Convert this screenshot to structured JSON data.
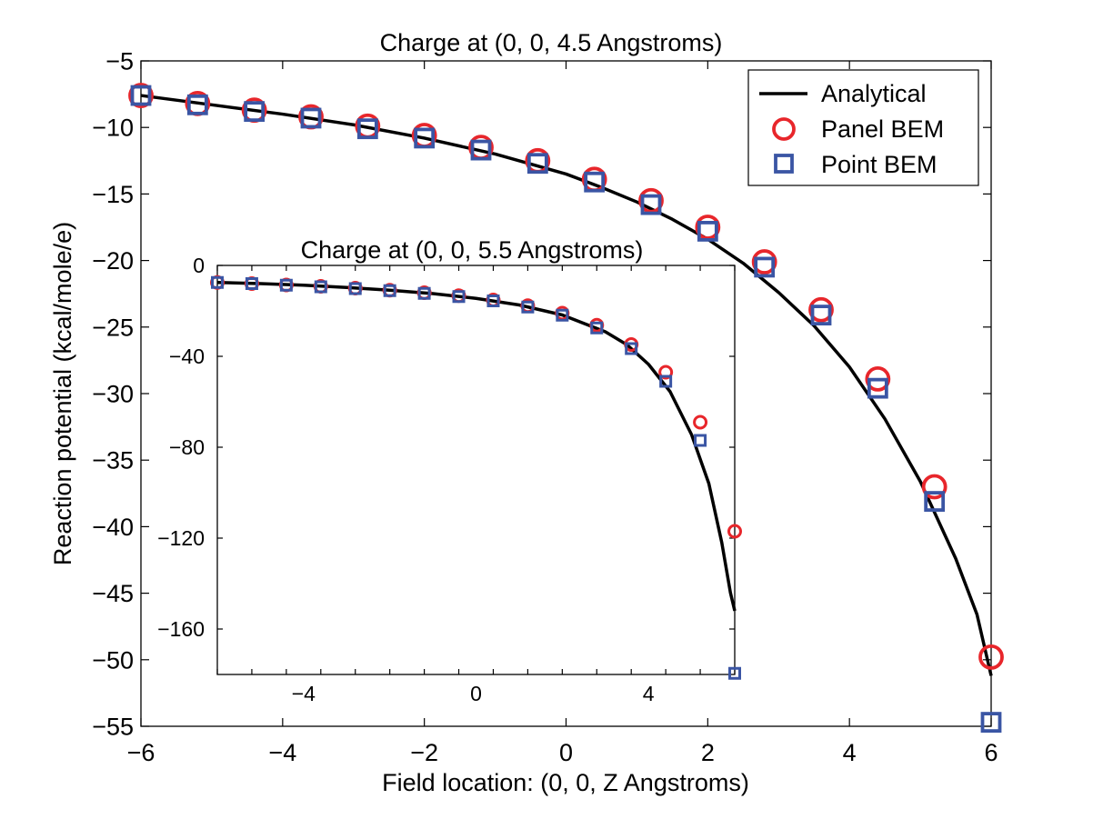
{
  "colors": {
    "analytical": "#000000",
    "panel": "#e8262b",
    "point": "#3a55a4",
    "axes": "#000000"
  },
  "chart_data": [
    {
      "type": "line",
      "title": "Charge at (0, 0, 4.5 Angstroms)",
      "xlabel": "Field location: (0, 0, Z Angstroms)",
      "ylabel": "Reaction potential (kcal/mole/e)",
      "xlim": [
        -6,
        6
      ],
      "ylim": [
        -55,
        -5
      ],
      "xticks": [
        -6,
        -4,
        -2,
        0,
        2,
        4,
        6
      ],
      "xtick_labels": [
        "−6",
        "−4",
        "−2",
        "0",
        "2",
        "4",
        "6"
      ],
      "yticks": [
        -5,
        -10,
        -15,
        -20,
        -25,
        -30,
        -35,
        -40,
        -45,
        -50,
        -55
      ],
      "ytick_labels": [
        "−5",
        "−10",
        "−15",
        "−20",
        "−25",
        "−30",
        "−35",
        "−40",
        "−45",
        "−50",
        "−55"
      ],
      "legend": {
        "position": "top-right",
        "entries": [
          {
            "label": "Analytical",
            "marker": "line"
          },
          {
            "label": "Panel BEM",
            "marker": "circle"
          },
          {
            "label": "Point BEM",
            "marker": "square"
          }
        ]
      },
      "series": [
        {
          "name": "Analytical",
          "style": "line",
          "x": [
            -6,
            -5,
            -4,
            -3,
            -2,
            -1,
            0,
            0.5,
            1,
            1.5,
            2,
            2.5,
            3,
            3.5,
            4,
            4.5,
            5,
            5.5,
            5.8,
            6
          ],
          "y": [
            -7.6,
            -8.3,
            -9.0,
            -9.8,
            -10.8,
            -12.0,
            -13.5,
            -14.5,
            -15.6,
            -16.9,
            -18.4,
            -20.2,
            -22.4,
            -24.9,
            -28.0,
            -31.9,
            -36.6,
            -42.4,
            -46.6,
            -51.2
          ]
        },
        {
          "name": "Panel BEM",
          "style": "circle",
          "x": [
            -6,
            -5.2,
            -4.4,
            -3.6,
            -2.8,
            -2.0,
            -1.2,
            -0.4,
            0.4,
            1.2,
            2.0,
            2.8,
            3.6,
            4.4,
            5.2,
            6.0
          ],
          "y": [
            -7.6,
            -8.2,
            -8.7,
            -9.2,
            -9.9,
            -10.6,
            -11.5,
            -12.5,
            -13.9,
            -15.5,
            -17.5,
            -20.1,
            -23.7,
            -28.9,
            -37.0,
            -49.8
          ]
        },
        {
          "name": "Point BEM",
          "style": "square",
          "x": [
            -6,
            -5.2,
            -4.4,
            -3.6,
            -2.8,
            -2.0,
            -1.2,
            -0.4,
            0.4,
            1.2,
            2.0,
            2.8,
            3.6,
            4.4,
            5.2,
            6.0
          ],
          "y": [
            -7.6,
            -8.3,
            -8.8,
            -9.3,
            -10.1,
            -10.8,
            -11.7,
            -12.7,
            -14.1,
            -15.8,
            -17.8,
            -20.5,
            -24.1,
            -29.6,
            -38.1,
            -54.7
          ]
        }
      ]
    },
    {
      "type": "line",
      "title": "Charge at (0, 0, 5.5 Angstroms)",
      "xlabel": "",
      "ylabel": "",
      "xlim": [
        -6,
        6
      ],
      "ylim": [
        -180,
        0
      ],
      "xticks": [
        -6,
        -5.2,
        -4.4,
        -3.6,
        -2.8,
        -2,
        -1.2,
        -0.4,
        0.4,
        1.2,
        2,
        2.8,
        3.6,
        4.4,
        5.2,
        6
      ],
      "xtick_labels_at": [
        -4,
        0,
        4
      ],
      "xtick_labels": [
        "−4",
        "0",
        "4"
      ],
      "yticks": [
        0,
        -40,
        -80,
        -120,
        -160
      ],
      "ytick_labels": [
        "0",
        "−40",
        "−80",
        "−120",
        "−160"
      ],
      "series": [
        {
          "name": "Analytical",
          "style": "line",
          "x": [
            -6,
            -5,
            -4,
            -3,
            -2,
            -1,
            0,
            1,
            2,
            3,
            3.5,
            4,
            4.5,
            5,
            5.4,
            5.7,
            5.9,
            6
          ],
          "y": [
            -7.5,
            -8.0,
            -8.7,
            -9.7,
            -10.9,
            -12.4,
            -14.5,
            -17.4,
            -21.8,
            -29.2,
            -34.9,
            -43.5,
            -55.5,
            -74.5,
            -96.0,
            -122.0,
            -144.0,
            -152.0
          ]
        },
        {
          "name": "Panel BEM",
          "style": "circle",
          "x": [
            -6,
            -5.2,
            -4.4,
            -3.6,
            -2.8,
            -2.0,
            -1.2,
            -0.4,
            0.4,
            1.2,
            2.0,
            2.8,
            3.6,
            4.4,
            5.2,
            6.0
          ],
          "y": [
            -7.5,
            -8.0,
            -8.6,
            -9.2,
            -10.0,
            -10.9,
            -12.0,
            -13.3,
            -15.2,
            -17.7,
            -21.0,
            -26.3,
            -34.8,
            -47.0,
            -69.0,
            -117.0
          ]
        },
        {
          "name": "Point BEM",
          "style": "square",
          "x": [
            -6,
            -5.2,
            -4.4,
            -3.6,
            -2.8,
            -2.0,
            -1.2,
            -0.4,
            0.4,
            1.2,
            2.0,
            2.8,
            3.6,
            4.4,
            5.2,
            6.0
          ],
          "y": [
            -7.5,
            -8.0,
            -8.7,
            -9.4,
            -10.2,
            -11.1,
            -12.3,
            -13.7,
            -15.6,
            -18.3,
            -21.9,
            -27.5,
            -36.6,
            -51.0,
            -77.0,
            -179.5
          ]
        }
      ]
    }
  ]
}
